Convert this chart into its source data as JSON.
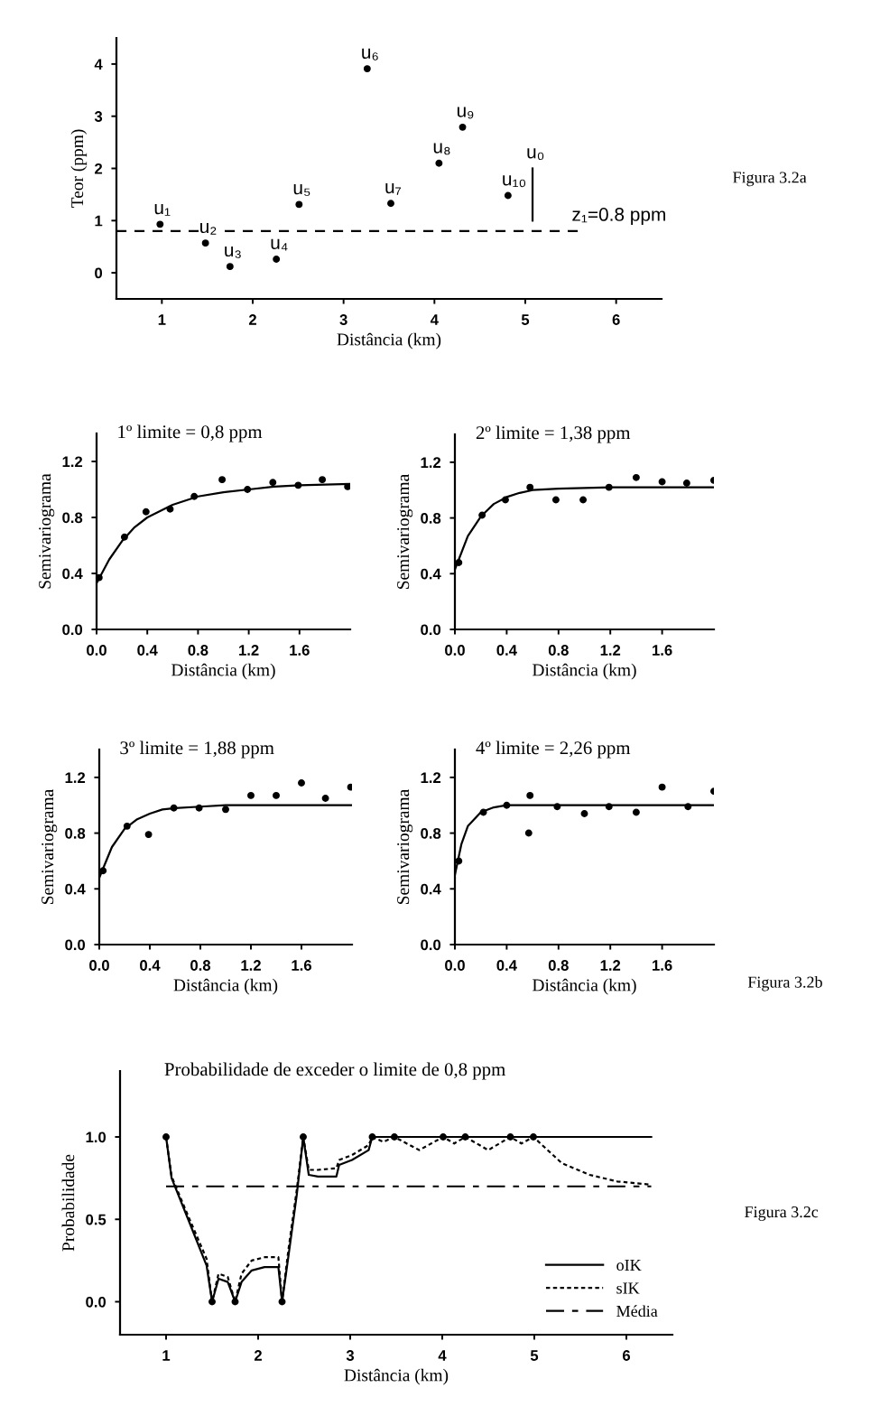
{
  "chart_data": [
    {
      "type": "scatter",
      "xlabel": "Distância (km)",
      "ylabel": "Teor (ppm)",
      "xlim": [
        0.5,
        6.5
      ],
      "xticks": [
        1,
        2,
        3,
        4,
        5,
        6
      ],
      "ylim": [
        -0.5,
        4.5
      ],
      "yticks": [
        0,
        1,
        2,
        3,
        4
      ],
      "series": [
        {
          "type": "scatter",
          "marker": "circle",
          "color": "#000000",
          "x": [
            0.98,
            1.48,
            1.75,
            2.26,
            2.51,
            3.26,
            3.52,
            4.05,
            4.31,
            4.81
          ],
          "values": [
            0.93,
            0.57,
            0.12,
            0.26,
            1.31,
            3.91,
            1.33,
            2.1,
            2.79,
            1.48
          ]
        },
        {
          "type": "line",
          "marker": "none",
          "color": "#000000",
          "line_style": "dashed",
          "x": [
            0.5,
            5.58
          ],
          "values": [
            0.8,
            0.8
          ]
        },
        {
          "type": "line",
          "marker": "none",
          "color": "#000000",
          "line_style": "solid",
          "x": [
            5.08,
            5.08
          ],
          "values": [
            1.0,
            2.0
          ]
        }
      ],
      "annotations": [
        {
          "text": "u₁",
          "x": 0.98,
          "y": 0.93
        },
        {
          "text": "u₂",
          "x": 1.48,
          "y": 0.57
        },
        {
          "text": "u₃",
          "x": 1.75,
          "y": 0.12
        },
        {
          "text": "u₄",
          "x": 2.26,
          "y": 0.26
        },
        {
          "text": "u₅",
          "x": 2.51,
          "y": 1.31
        },
        {
          "text": "u₆",
          "x": 3.26,
          "y": 3.91
        },
        {
          "text": "u₇",
          "x": 3.52,
          "y": 1.33
        },
        {
          "text": "u₈",
          "x": 4.05,
          "y": 2.1
        },
        {
          "text": "u₉",
          "x": 4.31,
          "y": 2.79
        },
        {
          "text": "u₁₀",
          "x": 4.81,
          "y": 1.48
        },
        {
          "text": "u₀",
          "x": 5.08,
          "y": 2.0
        },
        {
          "text": "z₁=0.8 ppm",
          "x": 5.58,
          "y": 0.8
        },
        "Figura 3.2a"
      ]
    },
    {
      "type": "scatter",
      "title": "1º limite = 0,8 ppm",
      "xlabel": "Distância (km)",
      "ylabel": "Semivariograma",
      "xlim": [
        0.0,
        2.0
      ],
      "ylim": [
        0.0,
        1.4
      ],
      "xticks": [
        {
          "value": 0.0,
          "label": "0.0"
        },
        {
          "value": 0.4,
          "label": "0.4"
        },
        {
          "value": 0.8,
          "label": "0.8"
        },
        {
          "value": 1.2,
          "label": "1.2"
        },
        {
          "value": 1.6,
          "label": "1.6"
        }
      ],
      "yticks": [
        {
          "value": 0.0,
          "label": "0.0"
        },
        {
          "value": 0.4,
          "label": "0.4"
        },
        {
          "value": 0.8,
          "label": "0.8"
        },
        {
          "value": 1.2,
          "label": "1.2"
        }
      ],
      "series": [
        {
          "type": "scatter",
          "color": "#000000",
          "x": [
            0.02,
            0.22,
            0.39,
            0.58,
            0.77,
            0.99,
            1.19,
            1.39,
            1.59,
            1.78,
            1.98
          ],
          "values": [
            0.37,
            0.66,
            0.84,
            0.86,
            0.95,
            1.07,
            1.0,
            1.05,
            1.03,
            1.07,
            1.02
          ]
        },
        {
          "type": "line",
          "color": "#000000",
          "line_style": "solid",
          "x": [
            0.0,
            0.1,
            0.2,
            0.3,
            0.4,
            0.6,
            0.8,
            1.0,
            1.2,
            1.4,
            1.6,
            2.0
          ],
          "values": [
            0.33,
            0.5,
            0.63,
            0.73,
            0.8,
            0.89,
            0.95,
            0.98,
            1.0,
            1.02,
            1.03,
            1.04
          ]
        }
      ]
    },
    {
      "type": "scatter",
      "title": "2º limite = 1,38 ppm",
      "xlabel": "Distância (km)",
      "ylabel": "Semivariograma",
      "xlim": [
        0.0,
        2.0
      ],
      "ylim": [
        0.0,
        1.4
      ],
      "xticks": [
        {
          "value": 0.0,
          "label": "0.0"
        },
        {
          "value": 0.4,
          "label": "0.4"
        },
        {
          "value": 0.8,
          "label": "0.8"
        },
        {
          "value": 1.2,
          "label": "1.2"
        },
        {
          "value": 1.6,
          "label": "1.6"
        }
      ],
      "yticks": [
        {
          "value": 0.0,
          "label": "0.0"
        },
        {
          "value": 0.4,
          "label": "0.4"
        },
        {
          "value": 0.8,
          "label": "0.8"
        },
        {
          "value": 1.2,
          "label": "1.2"
        }
      ],
      "series": [
        {
          "type": "scatter",
          "color": "#000000",
          "x": [
            0.03,
            0.21,
            0.39,
            0.58,
            0.78,
            0.99,
            1.19,
            1.4,
            1.6,
            1.79,
            2.0
          ],
          "values": [
            0.48,
            0.82,
            0.93,
            1.02,
            0.93,
            0.93,
            1.02,
            1.09,
            1.06,
            1.05,
            1.07
          ]
        },
        {
          "type": "line",
          "color": "#000000",
          "line_style": "solid",
          "x": [
            0.0,
            0.1,
            0.2,
            0.3,
            0.4,
            0.5,
            0.6,
            0.8,
            1.2,
            2.0
          ],
          "values": [
            0.43,
            0.67,
            0.81,
            0.9,
            0.95,
            0.98,
            1.0,
            1.01,
            1.02,
            1.02
          ]
        }
      ]
    },
    {
      "type": "scatter",
      "title": "3º limite = 1,88 ppm",
      "xlabel": "Distância (km)",
      "ylabel": "Semivariograma",
      "xlim": [
        0.0,
        2.0
      ],
      "ylim": [
        0.0,
        1.4
      ],
      "xticks": [
        {
          "value": 0.0,
          "label": "0.0"
        },
        {
          "value": 0.4,
          "label": "0.4"
        },
        {
          "value": 0.8,
          "label": "0.8"
        },
        {
          "value": 1.2,
          "label": "1.2"
        },
        {
          "value": 1.6,
          "label": "1.6"
        }
      ],
      "yticks": [
        {
          "value": 0.0,
          "label": "0.0"
        },
        {
          "value": 0.4,
          "label": "0.4"
        },
        {
          "value": 0.8,
          "label": "0.8"
        },
        {
          "value": 1.2,
          "label": "1.2"
        }
      ],
      "series": [
        {
          "type": "scatter",
          "color": "#000000",
          "x": [
            0.03,
            0.22,
            0.39,
            0.59,
            0.79,
            1.0,
            1.2,
            1.4,
            1.6,
            1.79,
            1.99
          ],
          "values": [
            0.53,
            0.85,
            0.79,
            0.98,
            0.98,
            0.97,
            1.07,
            1.07,
            1.16,
            1.05,
            1.13
          ]
        },
        {
          "type": "line",
          "color": "#000000",
          "line_style": "solid",
          "x": [
            0.0,
            0.1,
            0.2,
            0.3,
            0.4,
            0.5,
            0.6,
            0.8,
            1.0,
            2.0
          ],
          "values": [
            0.48,
            0.7,
            0.83,
            0.9,
            0.94,
            0.97,
            0.98,
            0.99,
            1.0,
            1.0
          ]
        }
      ]
    },
    {
      "type": "scatter",
      "title": "4º limite = 2,26 ppm",
      "xlabel": "Distância (km)",
      "ylabel": "Semivariograma",
      "xlim": [
        0.0,
        2.0
      ],
      "ylim": [
        0.0,
        1.4
      ],
      "xticks": [
        {
          "value": 0.0,
          "label": "0.0"
        },
        {
          "value": 0.4,
          "label": "0.4"
        },
        {
          "value": 0.8,
          "label": "0.8"
        },
        {
          "value": 1.2,
          "label": "1.2"
        },
        {
          "value": 1.6,
          "label": "1.6"
        }
      ],
      "yticks": [
        {
          "value": 0.0,
          "label": "0.0"
        },
        {
          "value": 0.4,
          "label": "0.4"
        },
        {
          "value": 0.8,
          "label": "0.8"
        },
        {
          "value": 1.2,
          "label": "1.2"
        }
      ],
      "series": [
        {
          "type": "scatter",
          "color": "#000000",
          "x": [
            0.03,
            0.22,
            0.4,
            0.58,
            0.57,
            0.79,
            1.0,
            1.19,
            1.4,
            1.6,
            1.8,
            2.0
          ],
          "values": [
            0.6,
            0.95,
            1.0,
            1.07,
            0.8,
            0.99,
            0.94,
            0.99,
            0.95,
            1.13,
            0.99,
            1.1
          ]
        },
        {
          "type": "line",
          "color": "#000000",
          "line_style": "solid",
          "x": [
            0.0,
            0.05,
            0.1,
            0.2,
            0.3,
            0.4,
            0.6,
            2.0
          ],
          "values": [
            0.5,
            0.72,
            0.85,
            0.95,
            0.985,
            1.0,
            1.0,
            1.0
          ]
        }
      ],
      "annotations": [
        "Figura 3.2b"
      ]
    },
    {
      "type": "line",
      "title": "Probabilidade de exceder o limite de 0,8 ppm",
      "xlabel": "Distância (km)",
      "ylabel": "Probabilidade",
      "xlim": [
        0.5,
        6.5
      ],
      "xticks": [
        1,
        2,
        3,
        4,
        5,
        6
      ],
      "ylim": [
        -0.2,
        1.4
      ],
      "yticks": [
        {
          "value": 0.0,
          "label": "0.0"
        },
        {
          "value": 0.5,
          "label": "0.5"
        },
        {
          "value": 1.0,
          "label": "1.0"
        }
      ],
      "legend": "bottom right",
      "series": [
        {
          "type": "line",
          "name": "oIK",
          "color": "#000000",
          "line_style": "solid",
          "x": [
            1.0,
            1.06,
            1.24,
            1.44,
            1.5,
            1.57,
            1.67,
            1.75,
            1.82,
            1.93,
            2.07,
            2.22,
            2.26,
            2.33,
            2.42,
            2.49,
            2.55,
            2.65,
            2.85,
            2.88,
            3.02,
            3.2,
            3.24,
            6.27
          ],
          "values": [
            1.0,
            0.75,
            0.5,
            0.22,
            0.0,
            0.14,
            0.12,
            0.0,
            0.12,
            0.19,
            0.21,
            0.21,
            0.0,
            0.28,
            0.65,
            1.0,
            0.77,
            0.76,
            0.76,
            0.83,
            0.86,
            0.92,
            1.0,
            1.0
          ]
        },
        {
          "type": "line",
          "name": "sIK",
          "color": "#000000",
          "line_style": "dotted",
          "x": [
            1.0,
            1.06,
            1.24,
            1.44,
            1.5,
            1.57,
            1.67,
            1.75,
            1.82,
            1.93,
            2.07,
            2.22,
            2.26,
            2.33,
            2.42,
            2.49,
            2.55,
            2.65,
            2.85,
            2.88,
            3.02,
            3.2,
            3.24,
            3.36,
            3.48,
            3.75,
            4.01,
            4.13,
            4.25,
            4.5,
            4.74,
            4.86,
            4.99,
            5.3,
            5.6,
            5.9,
            6.27
          ],
          "values": [
            1.0,
            0.76,
            0.52,
            0.26,
            0.0,
            0.17,
            0.15,
            0.0,
            0.17,
            0.25,
            0.27,
            0.27,
            0.0,
            0.32,
            0.68,
            1.0,
            0.8,
            0.8,
            0.81,
            0.86,
            0.89,
            0.95,
            1.0,
            0.97,
            1.0,
            0.92,
            1.0,
            0.96,
            1.0,
            0.92,
            1.0,
            0.96,
            1.0,
            0.84,
            0.77,
            0.73,
            0.71
          ]
        },
        {
          "type": "line",
          "name": "Média",
          "color": "#000000",
          "line_style": "dashed",
          "x": [
            1.0,
            6.27
          ],
          "values": [
            0.7,
            0.7
          ]
        },
        {
          "type": "scatter",
          "color": "#000000",
          "x": [
            1.0,
            1.5,
            1.75,
            2.26,
            2.49,
            3.24,
            3.48,
            4.01,
            4.25,
            4.74,
            4.99
          ],
          "values": [
            1.0,
            0.0,
            0.0,
            0.0,
            1.0,
            1.0,
            1.0,
            1.0,
            1.0,
            1.0,
            1.0
          ]
        }
      ],
      "annotations": [
        "Figura 3.2c"
      ]
    }
  ]
}
